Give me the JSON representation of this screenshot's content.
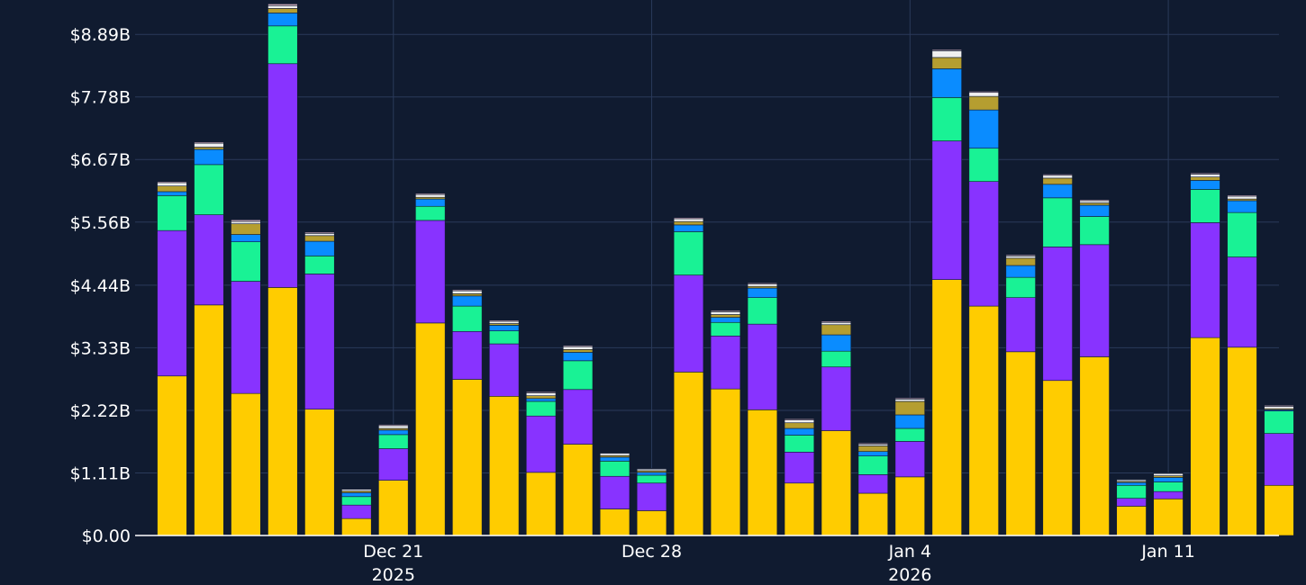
{
  "chart_data": {
    "type": "bar",
    "stacked": true,
    "title": "",
    "xlabel": "",
    "ylabel": "",
    "grid": true,
    "legend": "none",
    "ylim": [
      0,
      9.5
    ],
    "yticks": [
      0,
      1.11,
      2.22,
      3.33,
      4.44,
      5.56,
      6.67,
      7.78,
      8.89
    ],
    "ytick_labels": [
      "$0.00",
      "$1.11B",
      "$2.22B",
      "$3.33B",
      "$4.44B",
      "$5.56B",
      "$6.67B",
      "$7.78B",
      "$8.89B"
    ],
    "x_start": "2025-12-15",
    "x_range": [
      "2025-12-14",
      "2026-01-14"
    ],
    "xticks": [
      {
        "date": "2025-12-21",
        "line1": "Dec 21",
        "line2": "2025"
      },
      {
        "date": "2025-12-28",
        "line1": "Dec 28",
        "line2": ""
      },
      {
        "date": "2026-01-04",
        "line1": "Jan 4",
        "line2": "2026"
      },
      {
        "date": "2026-01-11",
        "line1": "Jan 11",
        "line2": ""
      }
    ],
    "series": [
      {
        "color": "#ffcc00",
        "values": [
          2.83,
          4.09,
          2.52,
          4.4,
          2.24,
          0.3,
          0.98,
          3.77,
          2.77,
          2.47,
          1.12,
          1.62,
          0.47,
          0.44,
          2.9,
          2.6,
          2.23,
          0.93,
          1.86,
          0.75,
          1.04,
          4.54,
          4.07,
          3.26,
          2.75,
          3.17,
          0.52,
          0.65,
          3.51,
          3.34,
          0.89
        ]
      },
      {
        "color": "#8833ff",
        "values": [
          2.58,
          1.6,
          1.99,
          3.97,
          2.4,
          0.24,
          0.56,
          1.82,
          0.85,
          0.93,
          1.0,
          0.97,
          0.58,
          0.49,
          1.72,
          0.94,
          1.52,
          0.55,
          1.13,
          0.33,
          0.63,
          2.46,
          2.21,
          0.96,
          2.37,
          1.99,
          0.14,
          0.13,
          2.04,
          1.6,
          0.92
        ]
      },
      {
        "color": "#19f295",
        "values": [
          0.62,
          0.89,
          0.7,
          0.67,
          0.32,
          0.15,
          0.25,
          0.25,
          0.45,
          0.23,
          0.26,
          0.51,
          0.27,
          0.14,
          0.77,
          0.24,
          0.47,
          0.3,
          0.28,
          0.33,
          0.23,
          0.77,
          0.59,
          0.36,
          0.87,
          0.5,
          0.23,
          0.17,
          0.59,
          0.79,
          0.4
        ]
      },
      {
        "color": "#0a8cff",
        "values": [
          0.07,
          0.27,
          0.13,
          0.23,
          0.26,
          0.07,
          0.08,
          0.13,
          0.18,
          0.1,
          0.05,
          0.15,
          0.07,
          0.05,
          0.12,
          0.09,
          0.17,
          0.12,
          0.29,
          0.08,
          0.24,
          0.51,
          0.68,
          0.21,
          0.24,
          0.2,
          0.05,
          0.08,
          0.16,
          0.21,
          0.02
        ]
      },
      {
        "color": "#b59e30",
        "values": [
          0.1,
          0.04,
          0.19,
          0.08,
          0.1,
          0.03,
          0.03,
          0.03,
          0.04,
          0.03,
          0.05,
          0.05,
          0.03,
          0.03,
          0.06,
          0.05,
          0.03,
          0.1,
          0.18,
          0.1,
          0.24,
          0.2,
          0.24,
          0.13,
          0.11,
          0.04,
          0.02,
          0.03,
          0.06,
          0.03,
          0.02
        ]
      },
      {
        "color": "#f0f0f0",
        "values": [
          0.06,
          0.07,
          0.04,
          0.05,
          0.04,
          0.03,
          0.05,
          0.05,
          0.05,
          0.04,
          0.05,
          0.05,
          0.04,
          0.03,
          0.05,
          0.05,
          0.04,
          0.05,
          0.04,
          0.03,
          0.04,
          0.12,
          0.07,
          0.04,
          0.05,
          0.04,
          0.03,
          0.04,
          0.05,
          0.05,
          0.04
        ]
      },
      {
        "color": "#c8a8b8",
        "values": [
          0.02,
          0.02,
          0.03,
          0.03,
          0.02,
          0.01,
          0.02,
          0.02,
          0.02,
          0.02,
          0.02,
          0.02,
          0.01,
          0.01,
          0.02,
          0.02,
          0.02,
          0.02,
          0.02,
          0.02,
          0.02,
          0.02,
          0.02,
          0.02,
          0.02,
          0.02,
          0.01,
          0.01,
          0.02,
          0.02,
          0.02
        ]
      }
    ]
  }
}
